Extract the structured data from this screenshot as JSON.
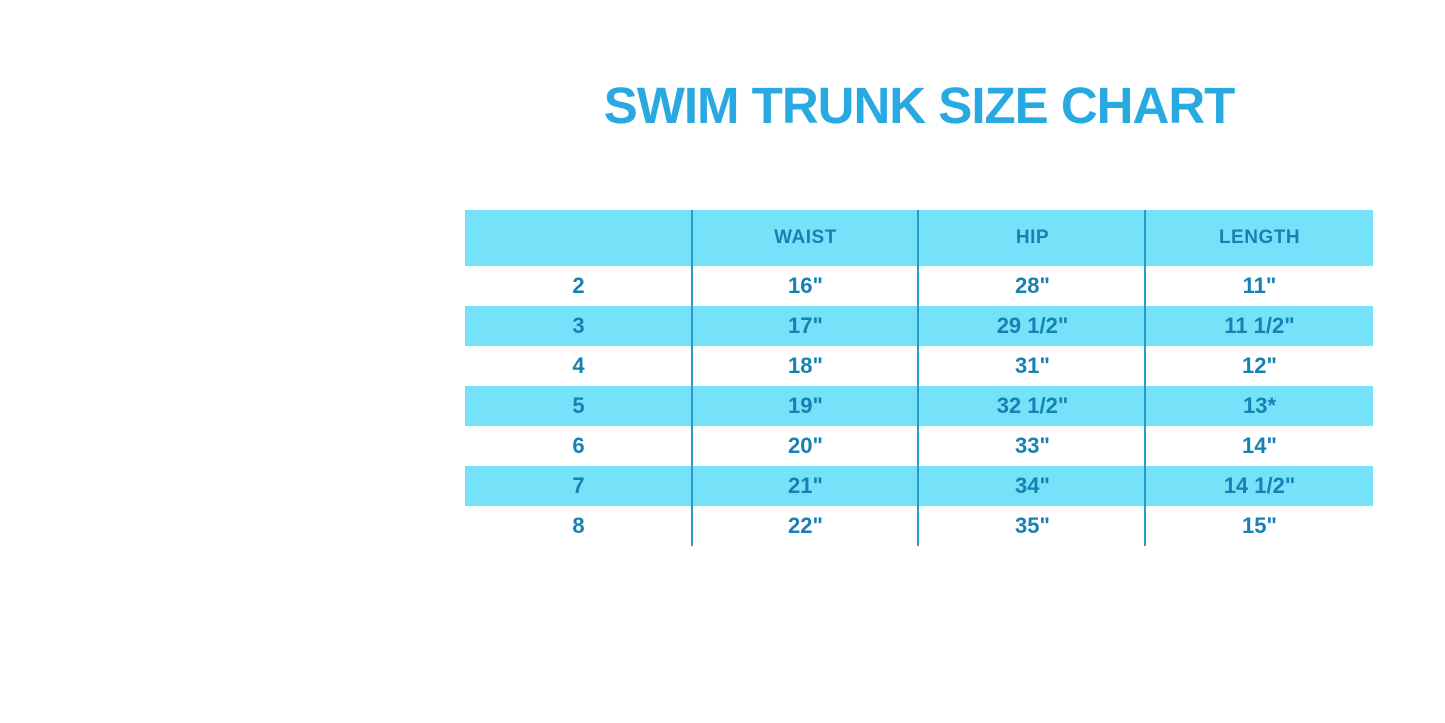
{
  "title": "SWIM TRUNK SIZE CHART",
  "colors": {
    "title-blue": "#29a9e1",
    "band-cyan": "#76e2f9",
    "divider-blue": "#2a9cc9",
    "text-blue": "#1781b3"
  },
  "chart_data": {
    "type": "table",
    "title": "SWIM TRUNK SIZE CHART",
    "columns": [
      "",
      "WAIST",
      "HIP",
      "LENGTH"
    ],
    "rows": [
      [
        "2",
        "16\"",
        "28\"",
        "11\""
      ],
      [
        "3",
        "17\"",
        "29 1/2\"",
        "11 1/2\""
      ],
      [
        "4",
        "18\"",
        "31\"",
        "12\""
      ],
      [
        "5",
        "19\"",
        "32 1/2\"",
        "13*"
      ],
      [
        "6",
        "20\"",
        "33\"",
        "14\""
      ],
      [
        "7",
        "21\"",
        "34\"",
        "14 1/2\""
      ],
      [
        "8",
        "22\"",
        "35\"",
        "15\""
      ]
    ],
    "layout": {
      "header_background": "alternating cyan bands, header row cyan",
      "grid": "vertical column dividers only, no horizontal borders"
    }
  }
}
